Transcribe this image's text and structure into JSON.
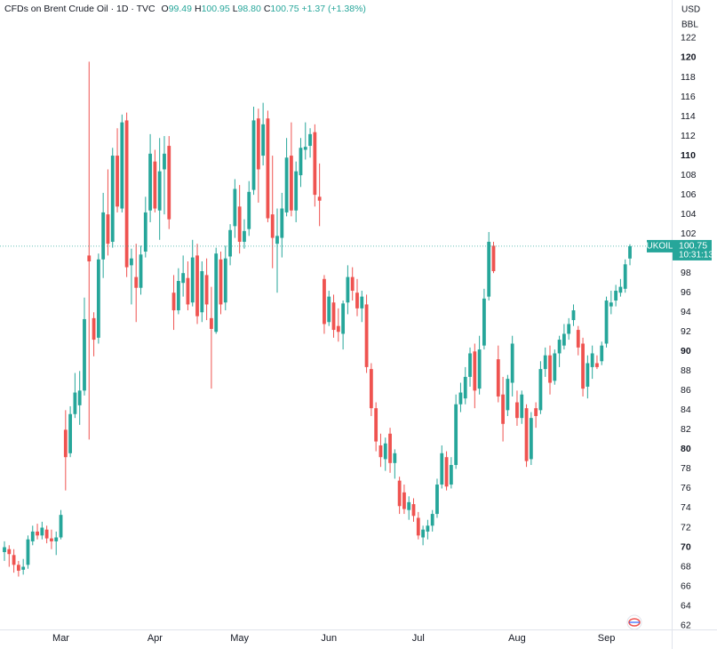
{
  "chart_data": {
    "type": "candlestick",
    "title": "CFDs on Brent Crude Oil · 1D · TVC",
    "legend_fields": [
      {
        "key": "O",
        "value": "99.49"
      },
      {
        "key": "H",
        "value": "100.95"
      },
      {
        "key": "L",
        "value": "98.80"
      },
      {
        "key": "C",
        "value": "100.75"
      }
    ],
    "change": "+1.37 (+1.38%)",
    "currency": "USD",
    "unit": "BBL",
    "price_tag": {
      "symbol": "UKOIL",
      "countdown": "10:31:13"
    },
    "up_color": "#26a69a",
    "down_color": "#ef5350",
    "grid": false,
    "ylim": [
      61.6,
      125.9
    ],
    "yticks": [
      62,
      64,
      66,
      68,
      70,
      72,
      74,
      76,
      78,
      80,
      82,
      84,
      86,
      88,
      90,
      92,
      94,
      96,
      98,
      100,
      102,
      104,
      106,
      108,
      110,
      112,
      114,
      116,
      118,
      120,
      122
    ],
    "categories": [
      null,
      null,
      null,
      null,
      null,
      null,
      null,
      null,
      null,
      null,
      null,
      null,
      "Mar",
      null,
      null,
      null,
      null,
      null,
      null,
      null,
      null,
      null,
      null,
      null,
      null,
      null,
      null,
      null,
      null,
      null,
      null,
      null,
      "Apr",
      null,
      null,
      null,
      null,
      null,
      null,
      null,
      null,
      null,
      null,
      null,
      null,
      null,
      null,
      null,
      null,
      null,
      "May",
      null,
      null,
      null,
      null,
      null,
      null,
      null,
      null,
      null,
      null,
      null,
      null,
      null,
      null,
      null,
      null,
      null,
      null,
      "Jun",
      null,
      null,
      null,
      null,
      null,
      null,
      null,
      null,
      null,
      null,
      null,
      null,
      null,
      null,
      null,
      null,
      null,
      null,
      "Jul",
      null,
      null,
      null,
      null,
      null,
      null,
      null,
      null,
      null,
      null,
      null,
      null,
      null,
      null,
      null,
      null,
      null,
      null,
      null,
      null,
      "Aug",
      null,
      null,
      null,
      null,
      null,
      null,
      null,
      null,
      null,
      null,
      null,
      null,
      null,
      null,
      null,
      null,
      null,
      null,
      "Sep",
      null,
      null,
      null,
      null,
      null
    ],
    "open": [
      69.5,
      69.8,
      69.2,
      68.2,
      67.7,
      68.2,
      70.6,
      71.6,
      71.2,
      71.8,
      70.9,
      70.6,
      71,
      82,
      79.6,
      83.6,
      84.5,
      86,
      99.8,
      93.4,
      91.4,
      99.4,
      104,
      101.2,
      110,
      104.6,
      113.6,
      98.8,
      97.6,
      96.5,
      100.2,
      104.4,
      109.4,
      104.4,
      108.6,
      111,
      96,
      94.2,
      97,
      97.5,
      95,
      99.8,
      94,
      97.8,
      93.4,
      92,
      99.4,
      95,
      99.7,
      102.8,
      104.8,
      101.2,
      102.5,
      106.5,
      113.8,
      110,
      113.8,
      104,
      101,
      101.6,
      104.2,
      110,
      104.4,
      108,
      110.6,
      111,
      112.4,
      105.8,
      97.4,
      93,
      95,
      92.6,
      91.8,
      95,
      97.6,
      96,
      94.4,
      94.8,
      88.2,
      84.2,
      80.4,
      79,
      81.6,
      78.6,
      76.8,
      75.6,
      73.8,
      74.4,
      73,
      71,
      71.6,
      72.2,
      73.4,
      76.4,
      79.2,
      76.4,
      78.4,
      84.6,
      85.2,
      87.4,
      90,
      86.2,
      90.6,
      95.6,
      100.8,
      89.2,
      85.6,
      84,
      86.8,
      84.8,
      83.2,
      84.2,
      79,
      84.2,
      84,
      88.2,
      89.6,
      87,
      89.8,
      90.6,
      91.8,
      93.2,
      92.2,
      90.8,
      86.4,
      88.4,
      88.8,
      89,
      90.8,
      94.6,
      95.2,
      96,
      96.4,
      99.49
    ],
    "high": [
      70.6,
      70.2,
      69.8,
      68.6,
      68.8,
      71.2,
      72.2,
      72.4,
      72.6,
      72.2,
      71.8,
      71.6,
      73.8,
      84,
      84.4,
      87.8,
      88,
      95.5,
      119.6,
      94,
      100,
      106.2,
      108.6,
      110.8,
      112.8,
      114.2,
      114.4,
      100.5,
      101,
      100.8,
      105.8,
      112.2,
      110.6,
      111.8,
      112,
      112,
      97.8,
      98.5,
      99.8,
      99.2,
      101.4,
      101,
      99.2,
      99.5,
      96.6,
      100.6,
      100.2,
      100.8,
      103,
      107.6,
      107,
      103.5,
      107.4,
      115,
      114.8,
      115.4,
      114.6,
      110,
      104.6,
      106.2,
      111.8,
      113.4,
      109.4,
      111.8,
      113.4,
      112.8,
      113.2,
      109.2,
      97.8,
      96.2,
      95.8,
      94.4,
      95.2,
      98.8,
      98.6,
      97.4,
      96.2,
      95.8,
      88.8,
      84.8,
      81.6,
      81.2,
      82.2,
      80,
      77.2,
      76.4,
      75.2,
      75,
      73.6,
      72.2,
      72.8,
      73.8,
      77,
      80.4,
      79.8,
      79.2,
      85.6,
      86.8,
      88.4,
      90.4,
      90.8,
      91.6,
      96.4,
      102.2,
      101.2,
      90.6,
      87.4,
      87.6,
      91.6,
      86,
      86,
      84.6,
      83.8,
      84.8,
      89,
      90.4,
      90.6,
      90.2,
      91.6,
      92.8,
      93.4,
      94.8,
      92.6,
      91.4,
      89.6,
      90.6,
      89.6,
      91,
      95.6,
      96.2,
      96.8,
      97.4,
      99.4,
      100.95
    ],
    "low": [
      68.6,
      68,
      67.4,
      67,
      67.2,
      67.8,
      70.2,
      70.8,
      70.8,
      70.4,
      69.8,
      69.2,
      70.8,
      75.8,
      79.2,
      83.2,
      82.5,
      85.5,
      81,
      89.5,
      90.8,
      97.5,
      99.8,
      100.6,
      104.2,
      104.2,
      97.6,
      94.8,
      93,
      95.8,
      99.6,
      103.2,
      104.2,
      101.4,
      104,
      102.5,
      92.2,
      93.8,
      95.6,
      94.2,
      94.6,
      92.8,
      93,
      93.2,
      86.2,
      91.8,
      93.8,
      94.2,
      98.8,
      101.6,
      100,
      100.5,
      101.8,
      106,
      105.2,
      109,
      103.2,
      98.5,
      96,
      99.6,
      103.8,
      103.8,
      103.2,
      106.8,
      109.6,
      109.8,
      104.8,
      102.8,
      91.8,
      92.6,
      91.4,
      91,
      90.2,
      93.8,
      95.2,
      93.6,
      93,
      87.8,
      83.4,
      79.8,
      78.2,
      77.8,
      77.6,
      77,
      73.4,
      73.4,
      72.8,
      72.6,
      70.8,
      70.2,
      70.8,
      71.6,
      73,
      76,
      75.8,
      76,
      78,
      83.8,
      84.6,
      86.4,
      84.2,
      85.6,
      90.2,
      95.2,
      98,
      84.8,
      80.8,
      83.4,
      85.4,
      82.4,
      82.6,
      78.2,
      78.4,
      82.2,
      83.6,
      87.4,
      85.6,
      86.6,
      88.4,
      90.2,
      91.2,
      92.6,
      89.6,
      85.4,
      85.2,
      87.2,
      88.2,
      88.6,
      90.4,
      93.8,
      94.6,
      95.6,
      96,
      98.8
    ],
    "close": [
      70,
      69.3,
      68.2,
      67.6,
      68,
      70.8,
      71.6,
      71.2,
      72,
      70.9,
      70.6,
      71,
      73.3,
      79.2,
      83.6,
      85.8,
      86,
      93.3,
      99.2,
      91.2,
      99.4,
      104.2,
      101,
      110,
      104.8,
      113.4,
      98.6,
      99.5,
      96.5,
      99.9,
      104.2,
      110.2,
      104.6,
      108.4,
      110.2,
      103.5,
      94.2,
      97.2,
      98,
      94.8,
      99.6,
      93.6,
      98.2,
      94.8,
      92.3,
      100,
      94.8,
      99.5,
      102.4,
      106.6,
      101.2,
      102.3,
      106.3,
      113.6,
      108.6,
      113.2,
      103.6,
      101.6,
      101.8,
      104.6,
      109.8,
      104.4,
      108.4,
      110.8,
      110.9,
      112.2,
      106,
      105.4,
      92.8,
      95.6,
      92.2,
      92,
      94.9,
      97.6,
      96.2,
      94.4,
      95.6,
      88.4,
      84.2,
      80.8,
      79.2,
      80.6,
      78.6,
      79.6,
      74.2,
      73.9,
      74.6,
      73.2,
      71.2,
      71.8,
      72.2,
      73.4,
      76.4,
      79.6,
      76.2,
      78.4,
      84.6,
      85.8,
      87.4,
      89.8,
      86,
      90.2,
      95.4,
      101.2,
      98.2,
      85.4,
      82.6,
      87.2,
      90.8,
      83.2,
      85.6,
      78.8,
      83.2,
      83.4,
      88.2,
      89.6,
      86.8,
      89.8,
      91.2,
      91.8,
      92.8,
      94.2,
      90.4,
      86.2,
      88.8,
      89.8,
      88.4,
      90.6,
      95.2,
      95,
      96.2,
      96.6,
      98.9,
      100.75
    ]
  }
}
